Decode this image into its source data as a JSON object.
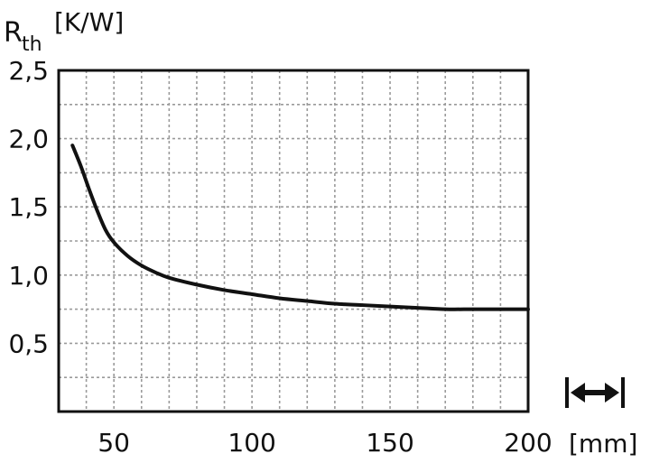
{
  "chart_data": {
    "type": "line",
    "ylabel_main": "R",
    "ylabel_sub": "th",
    "ylabel_unit": "[K/W]",
    "xlabel": "[mm]",
    "xlim": [
      30,
      200
    ],
    "ylim": [
      0,
      2.5
    ],
    "grid": true,
    "x_ticks": [
      {
        "value": 50,
        "label": "50"
      },
      {
        "value": 100,
        "label": "100"
      },
      {
        "value": 150,
        "label": "150"
      },
      {
        "value": 200,
        "label": "200"
      }
    ],
    "y_ticks": [
      {
        "value": 0.5,
        "label": "0,5"
      },
      {
        "value": 1.0,
        "label": "1,0"
      },
      {
        "value": 1.5,
        "label": "1,5"
      },
      {
        "value": 2.0,
        "label": "2,0"
      },
      {
        "value": 2.5,
        "label": "2,5"
      }
    ],
    "series": [
      {
        "color": "#111111",
        "x": [
          35,
          38,
          41,
          44,
          47,
          50,
          55,
          60,
          65,
          70,
          80,
          90,
          100,
          110,
          120,
          130,
          140,
          150,
          160,
          170,
          180,
          190,
          200
        ],
        "y": [
          1.95,
          1.8,
          1.63,
          1.47,
          1.33,
          1.24,
          1.14,
          1.07,
          1.02,
          0.98,
          0.93,
          0.89,
          0.86,
          0.83,
          0.81,
          0.79,
          0.78,
          0.77,
          0.76,
          0.75,
          0.75,
          0.75,
          0.75
        ]
      }
    ],
    "icon": "double-arrow-icon"
  }
}
